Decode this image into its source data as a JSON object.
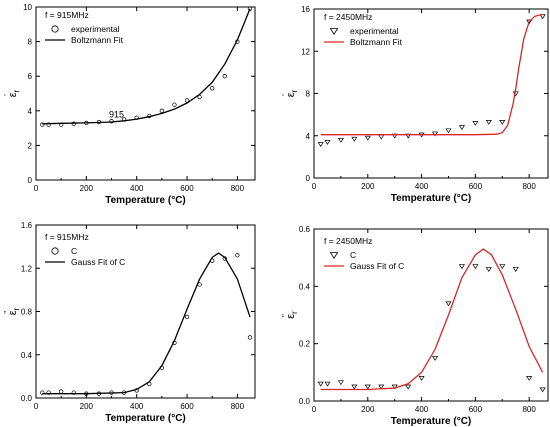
{
  "chart_data": [
    {
      "type": "scatter",
      "xlabel": "Temperature (°C)",
      "ylabel_main": "ε",
      "ylabel_sub": "r",
      "ylabel_mark": "'",
      "xlim": [
        0,
        870
      ],
      "ylim": [
        0,
        10
      ],
      "xticks": [
        0,
        200,
        400,
        600,
        800
      ],
      "yticks": [
        0,
        2,
        4,
        6,
        8,
        10
      ],
      "tick_labels_x": [
        "0",
        "200",
        "400",
        "600",
        "800"
      ],
      "tick_labels_y": [
        "0",
        "2",
        "4",
        "6",
        "8",
        "10"
      ],
      "legend_title": "f = 915MHz",
      "annotation": "915",
      "annotation_at": [
        290,
        3.6
      ],
      "series": [
        {
          "name": "experimental",
          "kind": "markers",
          "marker": "circle",
          "color": "#000000",
          "x": [
            25,
            50,
            100,
            150,
            200,
            250,
            300,
            350,
            400,
            450,
            500,
            550,
            600,
            650,
            700,
            750,
            800,
            850
          ],
          "y": [
            3.2,
            3.2,
            3.2,
            3.25,
            3.3,
            3.35,
            3.4,
            3.5,
            3.6,
            3.7,
            4.0,
            4.35,
            4.6,
            4.8,
            5.3,
            6.0,
            8.0,
            9.9
          ]
        },
        {
          "name": "Boltzmann Fit",
          "kind": "line",
          "color": "#000000",
          "x": [
            25,
            100,
            200,
            300,
            350,
            400,
            450,
            500,
            550,
            600,
            650,
            700,
            750,
            800,
            850
          ],
          "y": [
            3.25,
            3.28,
            3.3,
            3.35,
            3.42,
            3.52,
            3.66,
            3.85,
            4.1,
            4.45,
            4.95,
            5.65,
            6.7,
            8.1,
            9.9
          ]
        }
      ]
    },
    {
      "type": "scatter",
      "xlabel": "Temperature (°C)",
      "ylabel_main": "ε",
      "ylabel_sub": "r",
      "ylabel_mark": "'",
      "xlim": [
        0,
        870
      ],
      "ylim": [
        0,
        16
      ],
      "xticks": [
        0,
        200,
        400,
        600,
        800
      ],
      "yticks": [
        0,
        4,
        8,
        12,
        16
      ],
      "tick_labels_x": [
        "0",
        "200",
        "400",
        "600",
        "800"
      ],
      "tick_labels_y": [
        "0",
        "4",
        "8",
        "12",
        "16"
      ],
      "legend_title": "f = 2450MHz",
      "series": [
        {
          "name": "experimental",
          "kind": "markers",
          "marker": "triangle-down",
          "color": "#000000",
          "x": [
            25,
            50,
            100,
            150,
            200,
            250,
            300,
            350,
            400,
            450,
            500,
            550,
            600,
            650,
            700,
            750,
            800,
            850
          ],
          "y": [
            3.2,
            3.4,
            3.6,
            3.7,
            3.8,
            3.9,
            4.0,
            4.0,
            4.1,
            4.2,
            4.5,
            4.8,
            5.2,
            5.3,
            5.3,
            8.0,
            14.8,
            15.3
          ]
        },
        {
          "name": "Boltzmann Fit",
          "kind": "line",
          "color": "#d62728",
          "x": [
            25,
            200,
            400,
            600,
            680,
            700,
            720,
            740,
            750,
            760,
            780,
            800,
            820,
            850
          ],
          "y": [
            4.1,
            4.1,
            4.1,
            4.1,
            4.15,
            4.3,
            5.0,
            7.0,
            8.4,
            10.2,
            13.2,
            14.8,
            15.3,
            15.5
          ]
        }
      ]
    },
    {
      "type": "scatter",
      "xlabel": "Temperature (°C)",
      "ylabel_main": "ε",
      "ylabel_sub": "r",
      "ylabel_mark": "''",
      "xlim": [
        0,
        870
      ],
      "ylim": [
        0,
        1.6
      ],
      "xticks": [
        0,
        200,
        400,
        600,
        800
      ],
      "yticks": [
        0,
        0.4,
        0.8,
        1.2,
        1.6
      ],
      "tick_labels_x": [
        "0",
        "200",
        "400",
        "600",
        "800"
      ],
      "tick_labels_y": [
        "0.0",
        "0.4",
        "0.8",
        "1.2",
        "1.6"
      ],
      "legend_title": "f = 915MHz",
      "series": [
        {
          "name": "C",
          "kind": "markers",
          "marker": "circle",
          "color": "#000000",
          "x": [
            25,
            50,
            100,
            150,
            200,
            250,
            300,
            350,
            400,
            450,
            500,
            550,
            600,
            650,
            700,
            750,
            800,
            850
          ],
          "y": [
            0.05,
            0.05,
            0.06,
            0.05,
            0.04,
            0.04,
            0.05,
            0.05,
            0.07,
            0.13,
            0.28,
            0.51,
            0.75,
            1.05,
            1.27,
            1.29,
            1.32,
            0.56
          ]
        },
        {
          "name": "Gauss Fit of C",
          "kind": "line",
          "color": "#000000",
          "x": [
            25,
            200,
            350,
            400,
            450,
            500,
            550,
            600,
            650,
            700,
            725,
            750,
            800,
            850
          ],
          "y": [
            0.04,
            0.04,
            0.05,
            0.08,
            0.15,
            0.3,
            0.53,
            0.82,
            1.1,
            1.3,
            1.34,
            1.3,
            1.1,
            0.75
          ]
        }
      ]
    },
    {
      "type": "scatter",
      "xlabel": "Temperature (°C)",
      "ylabel_main": "ε",
      "ylabel_sub": "r",
      "ylabel_mark": "''",
      "xlim": [
        0,
        870
      ],
      "ylim": [
        0,
        0.6
      ],
      "xticks": [
        0,
        200,
        400,
        600,
        800
      ],
      "yticks": [
        0,
        0.2,
        0.4,
        0.6
      ],
      "tick_labels_x": [
        "0",
        "200",
        "400",
        "600",
        "800"
      ],
      "tick_labels_y": [
        "0.0",
        "0.2",
        "0.4",
        "0.6"
      ],
      "legend_title": "f = 2450MHz",
      "series": [
        {
          "name": "C",
          "kind": "markers",
          "marker": "triangle-down",
          "color": "#000000",
          "x": [
            25,
            50,
            100,
            150,
            200,
            250,
            300,
            350,
            400,
            450,
            500,
            550,
            600,
            650,
            700,
            750,
            800,
            850
          ],
          "y": [
            0.06,
            0.06,
            0.065,
            0.05,
            0.05,
            0.05,
            0.05,
            0.05,
            0.08,
            0.15,
            0.34,
            0.47,
            0.47,
            0.46,
            0.47,
            0.46,
            0.08,
            0.04
          ]
        },
        {
          "name": "Gauss Fit of C",
          "kind": "line",
          "color": "#d62728",
          "x": [
            25,
            200,
            300,
            350,
            400,
            450,
            500,
            550,
            600,
            630,
            660,
            700,
            750,
            800,
            850
          ],
          "y": [
            0.04,
            0.04,
            0.045,
            0.06,
            0.1,
            0.18,
            0.3,
            0.43,
            0.51,
            0.53,
            0.51,
            0.44,
            0.32,
            0.19,
            0.1
          ]
        }
      ]
    }
  ]
}
